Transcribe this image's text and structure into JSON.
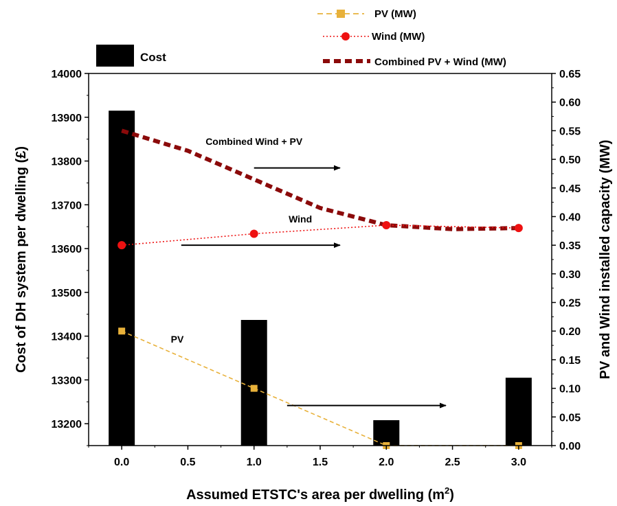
{
  "chart_data": {
    "type": "bar",
    "xlabel_main": "Assumed ETSTC's area per dwelling (m",
    "xlabel_sup": "2",
    "xlabel_end": ")",
    "ylabel_left": "Cost of DH system per dwelling (£)",
    "ylabel_right": "PV and Wind installed capacity (MW)",
    "xlim": [
      -0.25,
      3.25
    ],
    "ylim_left": [
      13150,
      14000
    ],
    "ylim_right": [
      0,
      0.65
    ],
    "x_ticks": [
      "0.0",
      "0.5",
      "1.0",
      "1.5",
      "2.0",
      "2.5",
      "3.0"
    ],
    "y_left_ticks": [
      "13200",
      "13300",
      "13400",
      "13500",
      "13600",
      "13700",
      "13800",
      "13900",
      "14000"
    ],
    "y_right_ticks": [
      "0.00",
      "0.05",
      "0.10",
      "0.15",
      "0.20",
      "0.25",
      "0.30",
      "0.35",
      "0.40",
      "0.45",
      "0.50",
      "0.55",
      "0.60",
      "0.65"
    ],
    "bars": {
      "name": "Cost",
      "color": "#000000",
      "x": [
        0,
        1,
        2,
        3
      ],
      "values": [
        13915,
        13437,
        13208,
        13305
      ]
    },
    "series": [
      {
        "name": "PV (MW)",
        "color": "#e8b13a",
        "x": [
          0,
          1,
          2,
          3
        ],
        "values": [
          0.2,
          0.1,
          0.0,
          0.0
        ]
      },
      {
        "name": "Wind (MW)",
        "color": "#ee1111",
        "x": [
          0,
          1,
          2,
          3
        ],
        "values": [
          0.35,
          0.37,
          0.385,
          0.38
        ]
      },
      {
        "name": "Combined PV + Wind (MW)",
        "color": "#8b0a0a",
        "x": [
          0,
          0.5,
          1,
          1.5,
          2,
          2.5,
          3
        ],
        "values": [
          0.55,
          0.515,
          0.465,
          0.415,
          0.385,
          0.378,
          0.38
        ]
      }
    ],
    "annotations": [
      {
        "text": "Combined Wind + PV",
        "x": 1.0,
        "y": 0.525,
        "arrow_from": 1.0,
        "arrow_to": 1.65,
        "arrow_y": 0.485
      },
      {
        "text": "Wind",
        "x": 1.35,
        "y": 0.39,
        "arrow_from": 0.45,
        "arrow_to": 1.65,
        "arrow_y": 0.35
      },
      {
        "text": "PV",
        "x": 0.42,
        "y": 0.18,
        "arrow_from": 1.25,
        "arrow_to": 2.45,
        "arrow_y": 0.07
      }
    ],
    "legend_placement": "top-right",
    "grid": false
  }
}
